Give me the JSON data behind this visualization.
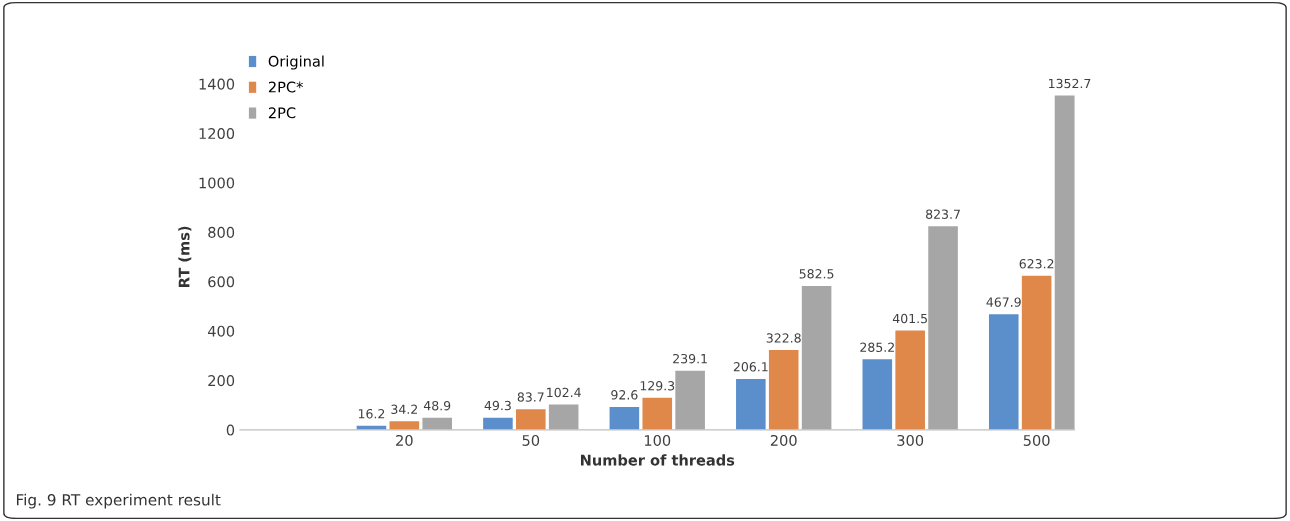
{
  "chart_data": {
    "type": "bar",
    "xlabel": "Number of threads",
    "ylabel": "RT (ms)",
    "categories": [
      "20",
      "50",
      "100",
      "200",
      "300",
      "500"
    ],
    "series": [
      {
        "name": "Original",
        "color": "#5b8fcb",
        "values": [
          16.2,
          49.3,
          92.6,
          206.1,
          285.2,
          467.9
        ]
      },
      {
        "name": "2PC*",
        "color": "#e0874a",
        "values": [
          34.2,
          83.7,
          129.3,
          322.8,
          401.5,
          623.2
        ]
      },
      {
        "name": "2PC",
        "color": "#a6a6a6",
        "values": [
          48.9,
          102.4,
          239.1,
          582.5,
          823.7,
          1352.7
        ]
      }
    ],
    "ylim": [
      0,
      1400
    ],
    "yticks": [
      0,
      200,
      400,
      600,
      800,
      1000,
      1200,
      1400
    ],
    "data_labels": true,
    "legend": "top left",
    "grid": false,
    "annotations": [
      "Fig. 9 RT experiment result"
    ]
  }
}
